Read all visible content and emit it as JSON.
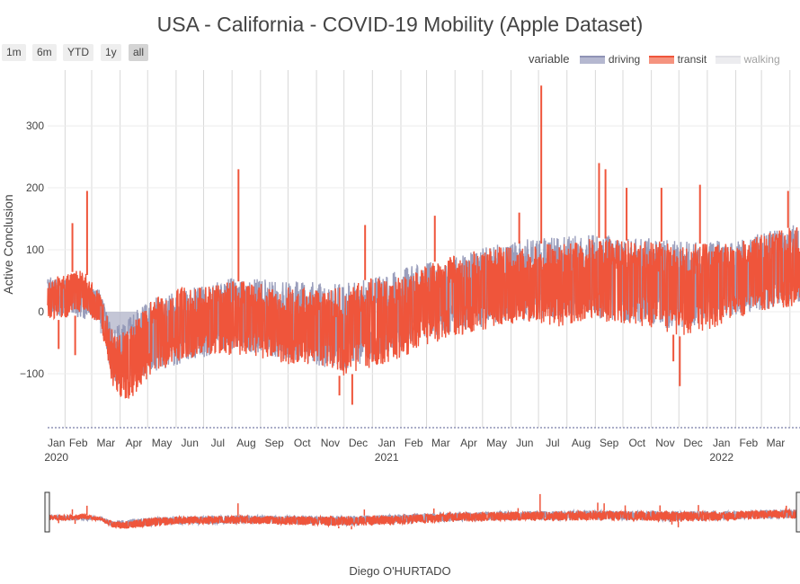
{
  "title": "USA - California - COVID-19 Mobility (Apple Dataset)",
  "range_buttons": [
    "1m",
    "6m",
    "YTD",
    "1y",
    "all"
  ],
  "active_range": "all",
  "legend": {
    "title": "variable",
    "items": [
      {
        "name": "driving",
        "color": "#8f93b5",
        "hidden": false
      },
      {
        "name": "transit",
        "color": "#ef553b",
        "hidden": false
      },
      {
        "name": "walking",
        "color": "#c2c2cc",
        "hidden": true
      }
    ]
  },
  "credit": "Diego O'HURTADO",
  "chart_data": {
    "type": "area",
    "title": "USA - California - COVID-19 Mobility (Apple Dataset)",
    "xlabel": "",
    "ylabel": "Active Conclusion",
    "x_range": [
      "2020-01-13",
      "2022-04-12"
    ],
    "ylim": [
      -187,
      390
    ],
    "y_ticks": [
      -100,
      0,
      100,
      200,
      300
    ],
    "x_month_ticks": [
      "Jan",
      "Feb",
      "Mar",
      "Apr",
      "May",
      "Jun",
      "Jul",
      "Aug",
      "Sep",
      "Oct",
      "Nov",
      "Dec",
      "Jan",
      "Feb",
      "Mar",
      "Apr",
      "May",
      "Jun",
      "Jul",
      "Aug",
      "Sep",
      "Oct",
      "Nov",
      "Dec",
      "Jan",
      "Feb",
      "Mar"
    ],
    "x_year_ticks": [
      "2020",
      "2021",
      "2022"
    ],
    "grid": true,
    "legend_position": "top-right",
    "rangeslider": true,
    "series": [
      {
        "name": "transit",
        "color": "#ef553b",
        "envelope": {
          "dates": [
            "2020-01-13",
            "2020-02-01",
            "2020-02-20",
            "2020-03-10",
            "2020-03-25",
            "2020-04-10",
            "2020-05-01",
            "2020-06-01",
            "2020-07-01",
            "2020-08-01",
            "2020-09-01",
            "2020-10-01",
            "2020-11-01",
            "2020-12-01",
            "2021-01-01",
            "2021-02-01",
            "2021-03-01",
            "2021-04-01",
            "2021-05-01",
            "2021-06-01",
            "2021-07-01",
            "2021-08-01",
            "2021-09-01",
            "2021-10-01",
            "2021-11-01",
            "2021-12-01",
            "2022-01-01",
            "2022-02-01",
            "2022-03-01",
            "2022-04-12"
          ],
          "upper": [
            55,
            60,
            70,
            30,
            -35,
            -30,
            15,
            40,
            40,
            50,
            45,
            40,
            35,
            40,
            55,
            55,
            75,
            95,
            100,
            110,
            110,
            110,
            120,
            115,
            115,
            110,
            110,
            110,
            125,
            140
          ],
          "lower": [
            -10,
            -15,
            0,
            -20,
            -130,
            -145,
            -110,
            -80,
            -70,
            -70,
            -75,
            -85,
            -95,
            -105,
            -90,
            -75,
            -55,
            -40,
            -30,
            -20,
            -20,
            -25,
            -15,
            -20,
            -25,
            -40,
            -30,
            -10,
            0,
            10
          ]
        },
        "spikes": [
          {
            "date": "2020-02-09",
            "value": 143
          },
          {
            "date": "2020-02-25",
            "value": 195
          },
          {
            "date": "2020-08-08",
            "value": 230
          },
          {
            "date": "2020-12-24",
            "value": 140
          },
          {
            "date": "2021-03-10",
            "value": 155
          },
          {
            "date": "2021-06-10",
            "value": 160
          },
          {
            "date": "2021-07-04",
            "value": 365
          },
          {
            "date": "2021-09-05",
            "value": 240
          },
          {
            "date": "2021-09-12",
            "value": 230
          },
          {
            "date": "2021-10-05",
            "value": 200
          },
          {
            "date": "2021-11-12",
            "value": 200
          },
          {
            "date": "2021-12-24",
            "value": 205
          },
          {
            "date": "2022-03-30",
            "value": 195
          },
          {
            "date": "2021-12-02",
            "value": -120
          },
          {
            "date": "2021-11-25",
            "value": -80
          },
          {
            "date": "2020-12-10",
            "value": -150
          },
          {
            "date": "2020-11-26",
            "value": -135
          },
          {
            "date": "2020-02-12",
            "value": -70
          },
          {
            "date": "2020-01-25",
            "value": -60
          }
        ]
      },
      {
        "name": "driving",
        "color": "#8f93b5",
        "envelope": {
          "dates": [
            "2020-01-13",
            "2020-03-10",
            "2020-03-25",
            "2020-05-01",
            "2020-08-01",
            "2020-12-01",
            "2021-03-01",
            "2021-06-01",
            "2021-09-01",
            "2021-12-01",
            "2022-02-01",
            "2022-04-12"
          ],
          "upper": [
            58,
            35,
            -28,
            20,
            55,
            45,
            80,
            115,
            125,
            115,
            115,
            145
          ],
          "lower": [
            -5,
            -15,
            -120,
            -100,
            -60,
            -95,
            -45,
            -15,
            -10,
            -30,
            -5,
            15
          ]
        }
      }
    ]
  }
}
